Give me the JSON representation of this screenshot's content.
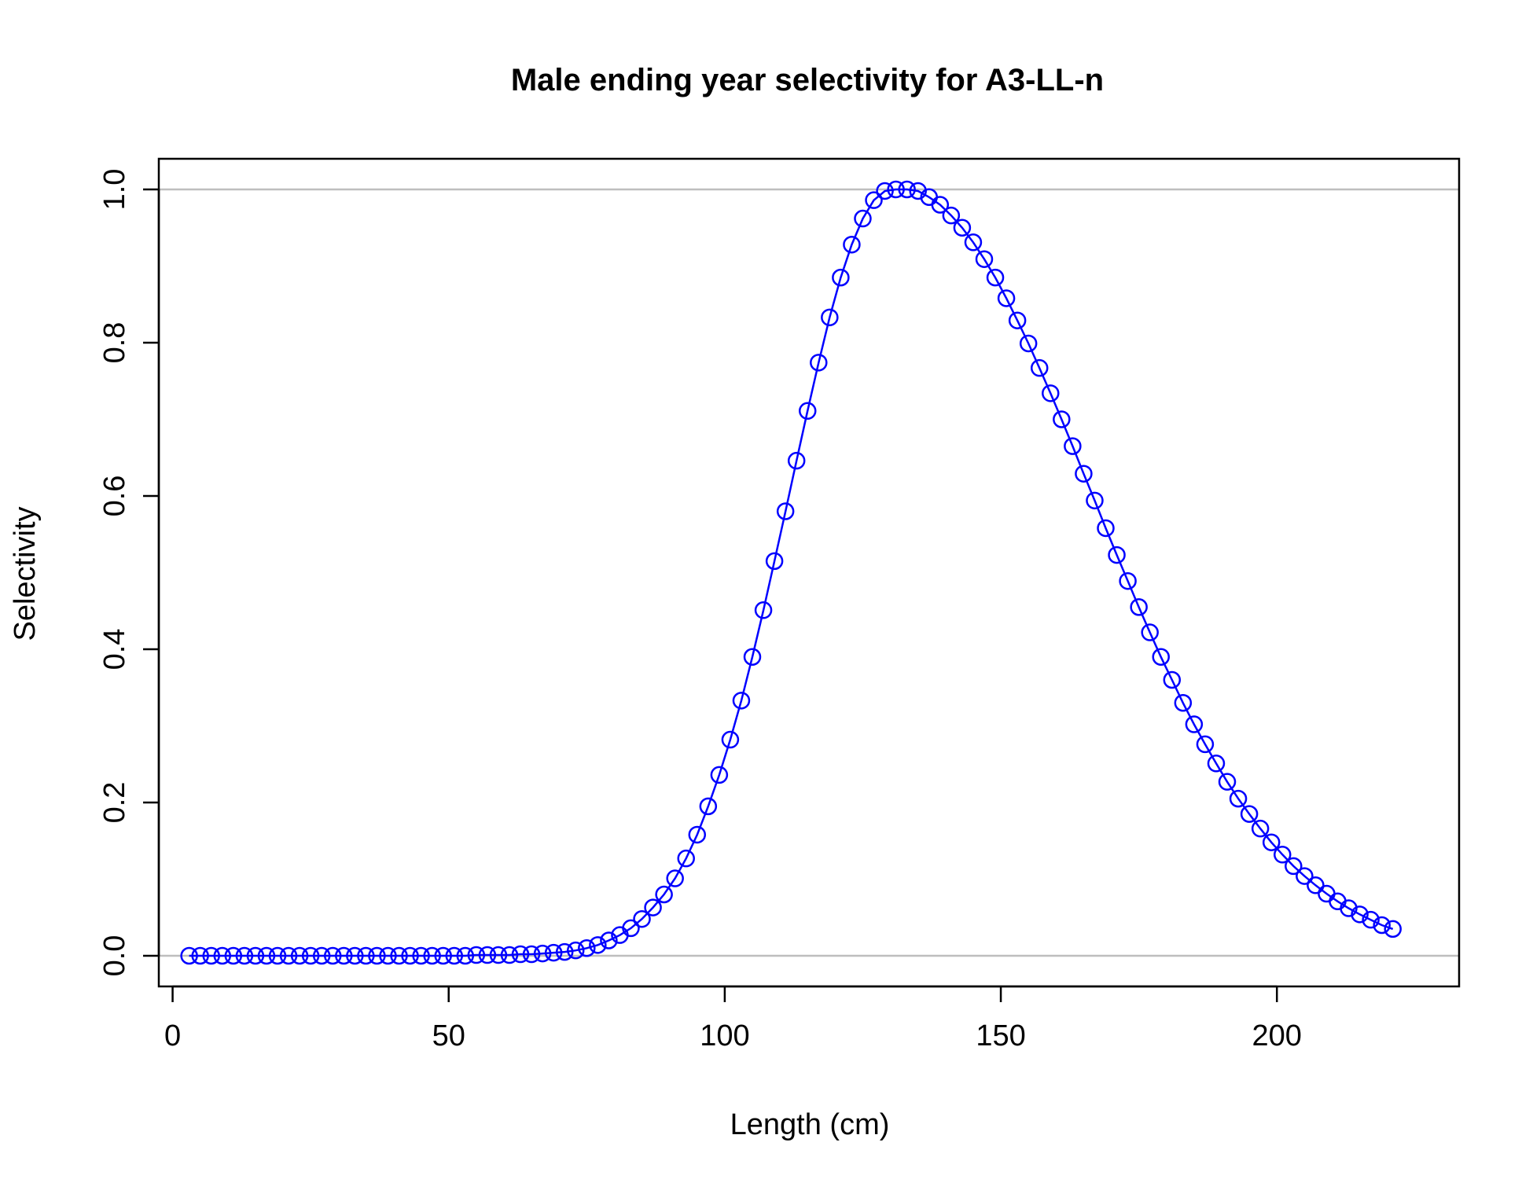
{
  "chart_data": {
    "type": "line",
    "title": "Male ending year selectivity for A3-LL-n",
    "xlabel": "Length (cm)",
    "ylabel": "Selectivity",
    "xlim": [
      -2.5,
      233
    ],
    "ylim": [
      -0.04,
      1.04
    ],
    "xticks": [
      0,
      50,
      100,
      150,
      200
    ],
    "xtick_labels": [
      "0",
      "50",
      "100",
      "150",
      "200"
    ],
    "yticks": [
      0,
      0.2,
      0.4,
      0.6,
      0.8,
      1.0
    ],
    "ytick_labels": [
      "0.0",
      "0.2",
      "0.4",
      "0.6",
      "0.8",
      "1.0"
    ],
    "reference_lines": [
      0,
      1
    ],
    "series": [
      {
        "color": "#0000ff",
        "marker": "open-circle",
        "x": [
          3,
          5,
          7,
          9,
          11,
          13,
          15,
          17,
          19,
          21,
          23,
          25,
          27,
          29,
          31,
          33,
          35,
          37,
          39,
          41,
          43,
          45,
          47,
          49,
          51,
          53,
          55,
          57,
          59,
          61,
          63,
          65,
          67,
          69,
          71,
          73,
          75,
          77,
          79,
          81,
          83,
          85,
          87,
          89,
          91,
          93,
          95,
          97,
          99,
          101,
          103,
          105,
          107,
          109,
          111,
          113,
          115,
          117,
          119,
          121,
          123,
          125,
          127,
          129,
          131,
          133,
          135,
          137,
          139,
          141,
          143,
          145,
          147,
          149,
          151,
          153,
          155,
          157,
          159,
          161,
          163,
          165,
          167,
          169,
          171,
          173,
          175,
          177,
          179,
          181,
          183,
          185,
          187,
          189,
          191,
          193,
          195,
          197,
          199,
          201,
          203,
          205,
          207,
          209,
          211,
          213,
          215,
          217,
          219,
          221
        ],
        "y": [
          0,
          0,
          0,
          0,
          0,
          0,
          0,
          0,
          0,
          0,
          0,
          0,
          0,
          0,
          0,
          0,
          0,
          0,
          0,
          0,
          0,
          0,
          0,
          0,
          0,
          0,
          0.001,
          0.001,
          0.001,
          0.001,
          0.002,
          0.002,
          0.003,
          0.004,
          0.005,
          0.007,
          0.01,
          0.014,
          0.02,
          0.027,
          0.036,
          0.048,
          0.063,
          0.08,
          0.101,
          0.127,
          0.158,
          0.195,
          0.236,
          0.282,
          0.333,
          0.39,
          0.451,
          0.515,
          0.58,
          0.646,
          0.711,
          0.774,
          0.833,
          0.885,
          0.928,
          0.962,
          0.986,
          0.998,
          1.0,
          1.0,
          0.998,
          0.99,
          0.98,
          0.966,
          0.95,
          0.931,
          0.909,
          0.885,
          0.858,
          0.829,
          0.799,
          0.767,
          0.734,
          0.7,
          0.665,
          0.629,
          0.594,
          0.558,
          0.523,
          0.489,
          0.455,
          0.422,
          0.39,
          0.36,
          0.33,
          0.302,
          0.276,
          0.251,
          0.227,
          0.205,
          0.185,
          0.166,
          0.148,
          0.132,
          0.117,
          0.104,
          0.092,
          0.081,
          0.071,
          0.062,
          0.054,
          0.047,
          0.04,
          0.035
        ]
      }
    ]
  }
}
